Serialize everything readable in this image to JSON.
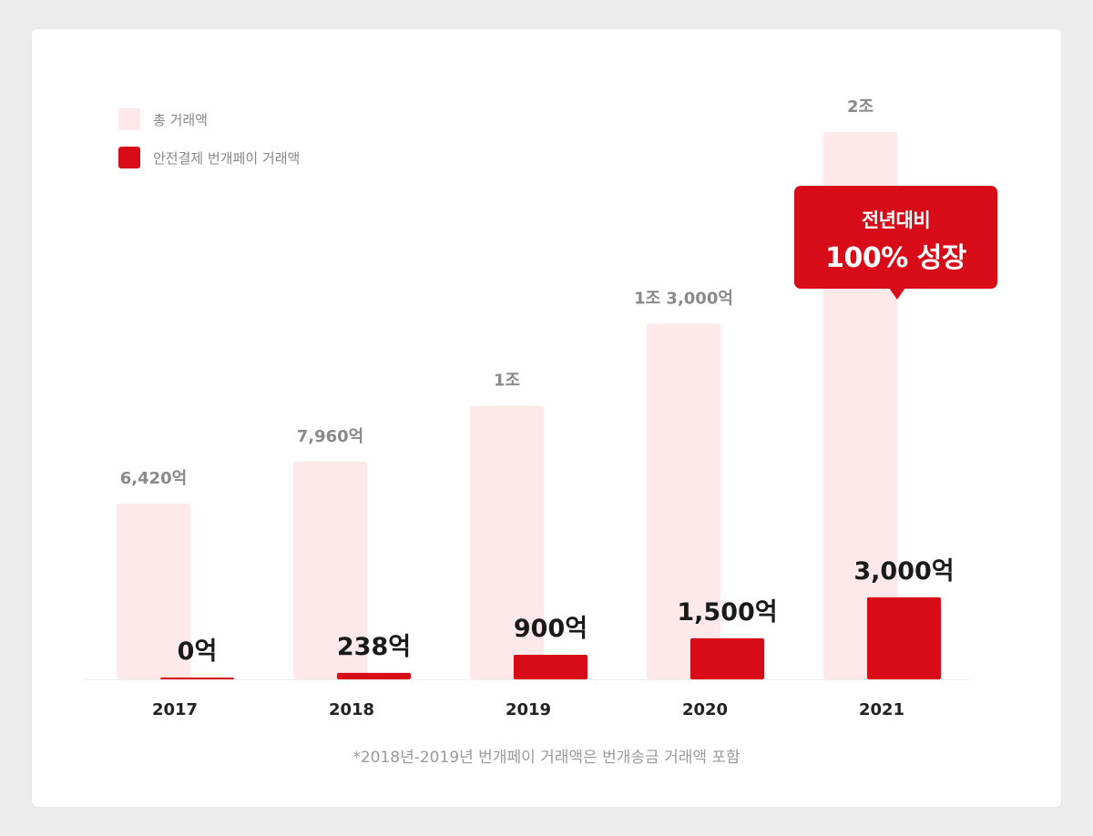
{
  "legend": {
    "total_label": "총 거래액",
    "safe_pay_label": "안전결제 번개페이 거래액"
  },
  "callout": {
    "line1": "전년대비",
    "line2": "100% 성장"
  },
  "footnote": "*2018년-2019년 번개페이 거래액은 번개송금 거래액 포함",
  "colors": {
    "total_bar": "#fde9ea",
    "safe_pay_bar": "#d80c18",
    "total_label": "#8a8a8a",
    "safe_pay_label": "#1a1a1a",
    "year_label": "#222222",
    "axis": "#eeeeee"
  },
  "chart_data": {
    "type": "bar",
    "categories": [
      "2017",
      "2018",
      "2019",
      "2020",
      "2021"
    ],
    "series": [
      {
        "name": "총 거래액",
        "values": [
          6420,
          7960,
          10000,
          13000,
          20000
        ],
        "labels": [
          "6,420억",
          "7,960억",
          "1조",
          "1조 3,000억",
          "2조"
        ]
      },
      {
        "name": "안전결제 번개페이 거래액",
        "values": [
          0,
          238,
          900,
          1500,
          3000
        ],
        "labels": [
          "0억",
          "238억",
          "900억",
          "1,500억",
          "3,000억"
        ]
      }
    ],
    "unit": "억"
  }
}
